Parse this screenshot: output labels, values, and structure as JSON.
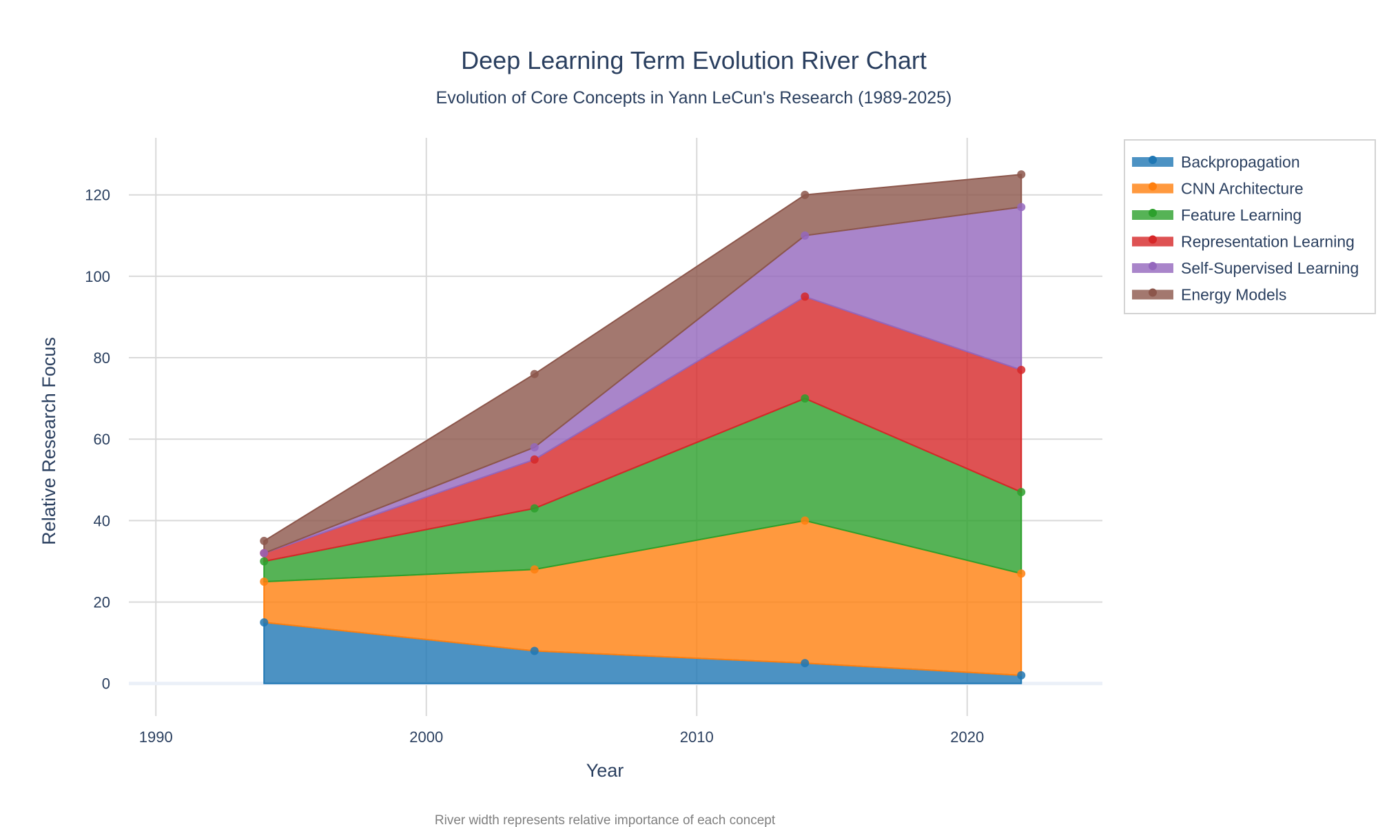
{
  "chart_data": {
    "type": "area",
    "title": "Deep Learning Term Evolution River Chart",
    "subtitle": "Evolution of Core Concepts in Yann LeCun's Research (1989-2025)",
    "xlabel": "Year",
    "ylabel": "Relative Research Focus",
    "annotation": "River width represents relative importance of each concept",
    "stacked": true,
    "xlim": [
      1989,
      2025
    ],
    "ylim": [
      -8,
      134
    ],
    "x_ticks": [
      1990,
      2000,
      2010,
      2020
    ],
    "y_ticks": [
      0,
      20,
      40,
      60,
      80,
      100,
      120
    ],
    "grid": true,
    "legend_position": "top-right",
    "x": [
      1994,
      2004,
      2014,
      2022
    ],
    "series": [
      {
        "name": "Backpropagation",
        "values": [
          15,
          8,
          5,
          2
        ],
        "color": "#1f77b4"
      },
      {
        "name": "CNN Architecture",
        "values": [
          10,
          20,
          35,
          25
        ],
        "color": "#ff7f0e"
      },
      {
        "name": "Feature Learning",
        "values": [
          5,
          15,
          30,
          20
        ],
        "color": "#2ca02c"
      },
      {
        "name": "Representation Learning",
        "values": [
          2,
          12,
          25,
          30
        ],
        "color": "#d62728"
      },
      {
        "name": "Self-Supervised Learning",
        "values": [
          0,
          3,
          15,
          40
        ],
        "color": "#9467bd"
      },
      {
        "name": "Energy Models",
        "values": [
          3,
          18,
          10,
          8
        ],
        "color": "#8c564b"
      }
    ]
  }
}
